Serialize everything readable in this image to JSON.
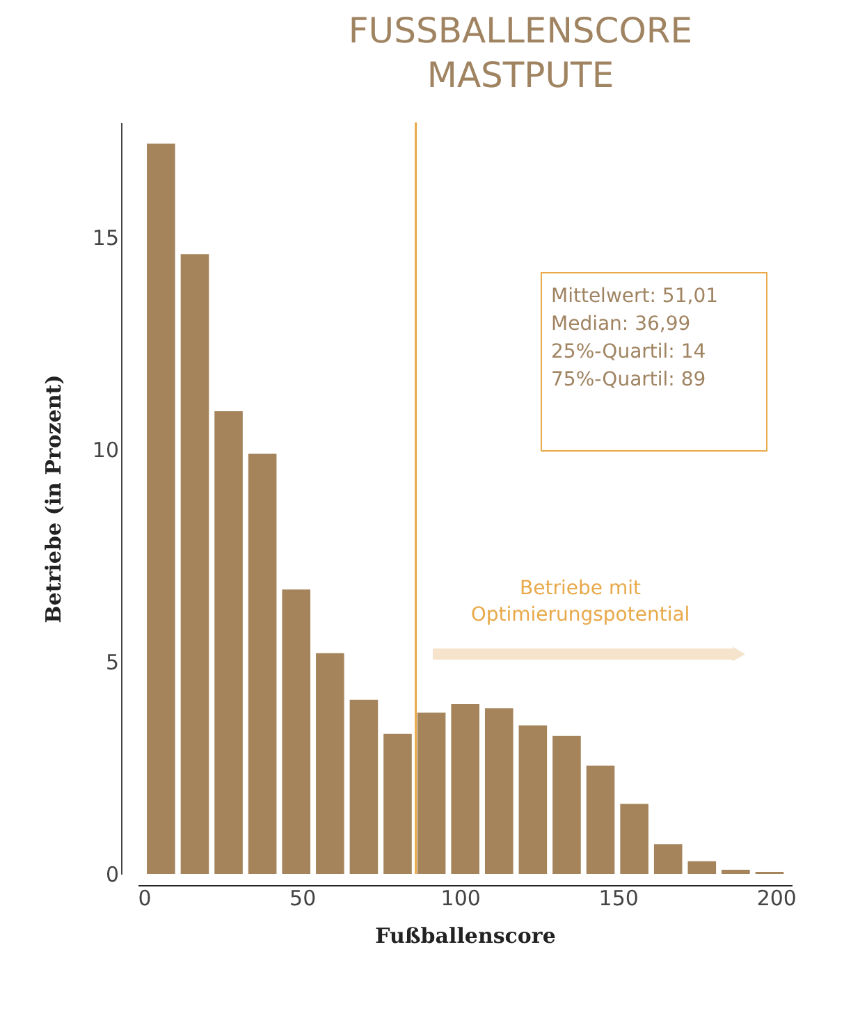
{
  "chart_data": {
    "type": "histogram",
    "title": "FUSSBALLENSCORE MASTPUTE",
    "xlabel": "Fußballenscore",
    "ylabel": "Betriebe (in Prozent)",
    "bins": [
      0,
      10.7,
      21.4,
      32.1,
      42.8,
      53.5,
      64.2,
      74.9,
      85.6,
      96.3,
      107.0,
      117.7,
      128.4,
      139.1,
      149.8,
      160.5,
      171.2,
      181.9,
      192.6,
      203.3
    ],
    "values": [
      17.2,
      14.6,
      10.9,
      9.9,
      6.7,
      5.2,
      4.1,
      3.3,
      3.8,
      4.0,
      3.9,
      3.5,
      3.25,
      2.55,
      1.65,
      0.7,
      0.3,
      0.1,
      0.05
    ],
    "color": "#a5845b",
    "xlim": [
      -2,
      205
    ],
    "ylim": [
      0,
      17.7
    ],
    "xticks": [
      0,
      50,
      100,
      150,
      200
    ],
    "yticks": [
      0,
      5,
      10,
      15
    ],
    "grid": false,
    "ref_lines": [
      {
        "axis": "x",
        "value": 86,
        "color": "#e8a94a"
      }
    ],
    "annotations": [
      "Mittelwert: 51,01\nMedian: 36,99\n25%-Quartil: 14\n75%-Quartil: 89",
      "Betriebe mit\nOptimierungspotential"
    ]
  }
}
